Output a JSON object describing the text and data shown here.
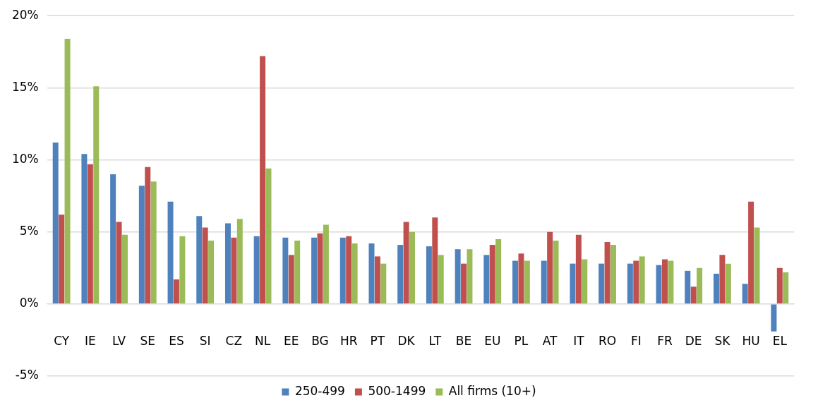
{
  "chart_data": {
    "type": "bar",
    "categories": [
      "CY",
      "IE",
      "LV",
      "SE",
      "ES",
      "SI",
      "CZ",
      "NL",
      "EE",
      "BG",
      "HR",
      "PT",
      "DK",
      "LT",
      "BE",
      "EU",
      "PL",
      "AT",
      "IT",
      "RO",
      "FI",
      "FR",
      "DE",
      "SK",
      "HU",
      "EL"
    ],
    "series": [
      {
        "name": "250-499",
        "color": "#4f81bd",
        "values": [
          11.2,
          10.4,
          9.0,
          8.2,
          7.1,
          6.1,
          5.6,
          4.7,
          4.6,
          4.6,
          4.6,
          4.2,
          4.1,
          4.0,
          3.8,
          3.4,
          3.0,
          3.0,
          2.8,
          2.8,
          2.8,
          2.7,
          2.3,
          2.1,
          1.4,
          -1.9
        ]
      },
      {
        "name": "500-1499",
        "color": "#c0504d",
        "values": [
          6.2,
          9.7,
          5.7,
          9.5,
          1.7,
          5.3,
          4.6,
          17.2,
          3.4,
          4.9,
          4.7,
          3.3,
          5.7,
          6.0,
          2.8,
          4.1,
          3.5,
          5.0,
          4.8,
          4.3,
          3.0,
          3.1,
          1.2,
          3.4,
          7.1,
          2.5
        ]
      },
      {
        "name": "All firms (10+)",
        "color": "#9bbb59",
        "values": [
          18.4,
          15.1,
          4.8,
          8.5,
          4.7,
          4.4,
          5.9,
          9.4,
          4.4,
          5.5,
          4.2,
          2.8,
          5.0,
          3.4,
          3.8,
          4.5,
          3.0,
          4.4,
          3.1,
          4.1,
          3.3,
          3.0,
          2.5,
          2.8,
          5.3,
          2.2
        ]
      }
    ],
    "ylim": [
      -5,
      20
    ],
    "yticks": [
      {
        "value": -5,
        "label": "-5%"
      },
      {
        "value": 0,
        "label": "0%"
      },
      {
        "value": 5,
        "label": "5%"
      },
      {
        "value": 10,
        "label": "10%"
      },
      {
        "value": 15,
        "label": "15%"
      },
      {
        "value": 20,
        "label": "20%"
      }
    ],
    "grid": "y",
    "legend": "bottom"
  }
}
